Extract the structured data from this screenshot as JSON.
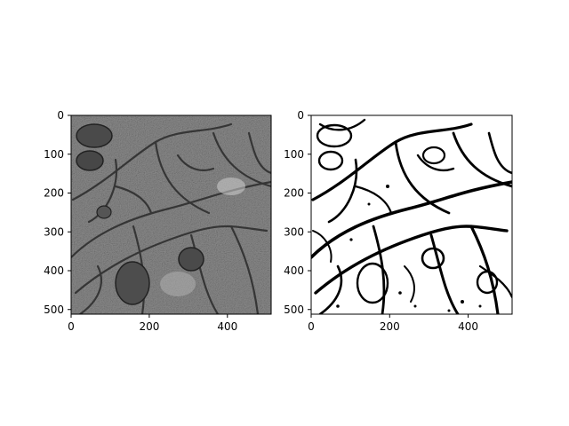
{
  "figure": {
    "panels": [
      {
        "name": "grayscale-em-image",
        "description_kind": "electron-microscopy grayscale",
        "xticks": [
          "0",
          "200",
          "400"
        ],
        "yticks": [
          "0",
          "100",
          "200",
          "300",
          "400",
          "500"
        ]
      },
      {
        "name": "binary-segmentation-mask",
        "description_kind": "binary membrane mask",
        "xticks": [
          "0",
          "200",
          "400"
        ],
        "yticks": [
          "0",
          "100",
          "200",
          "300",
          "400",
          "500"
        ]
      }
    ],
    "colors": {
      "background": "#ffffff",
      "axis": "#000000",
      "mask_fg": "#000000",
      "mask_bg": "#ffffff",
      "gray_base": "#8a8a8a"
    }
  }
}
